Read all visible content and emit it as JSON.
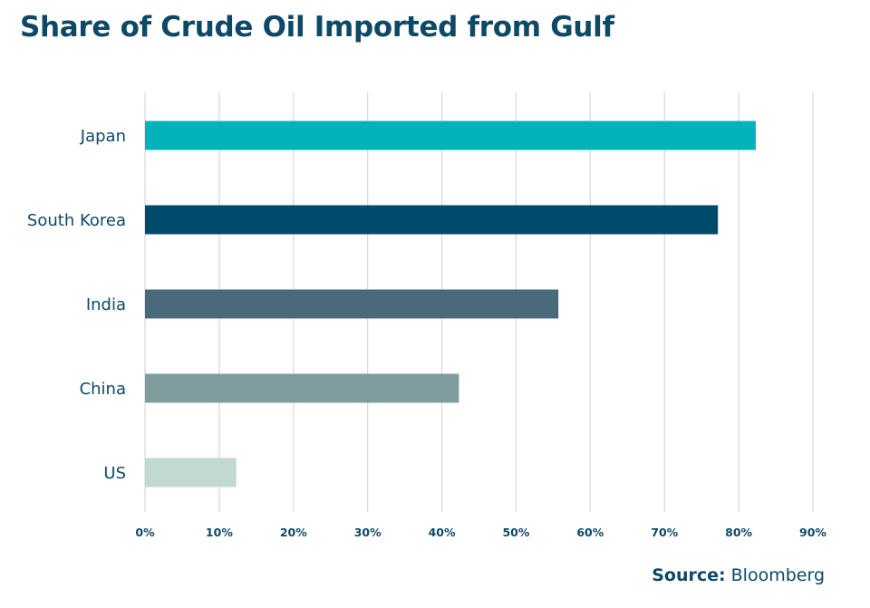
{
  "title": "Share of Crude Oil Imported from Gulf",
  "source": {
    "label": "Source:",
    "value": "Bloomberg"
  },
  "chart_data": {
    "type": "bar",
    "orientation": "horizontal",
    "title": "Share of Crude Oil Imported from Gulf",
    "xlabel": "",
    "ylabel": "",
    "categories": [
      "Japan",
      "South Korea",
      "India",
      "China",
      "US"
    ],
    "values": [
      82.3,
      77.2,
      55.7,
      42.3,
      12.3
    ],
    "colors": [
      "#03b3bb",
      "#004a6b",
      "#4a6a7c",
      "#7f9d9e",
      "#c2d8d2"
    ],
    "xlim": [
      0,
      90
    ],
    "ticks": [
      0,
      10,
      20,
      30,
      40,
      50,
      60,
      70,
      80,
      90
    ],
    "tick_labels": [
      "0%",
      "10%",
      "20%",
      "30%",
      "40%",
      "50%",
      "60%",
      "70%",
      "80%",
      "90%"
    ],
    "grid": true,
    "legend": "none"
  }
}
